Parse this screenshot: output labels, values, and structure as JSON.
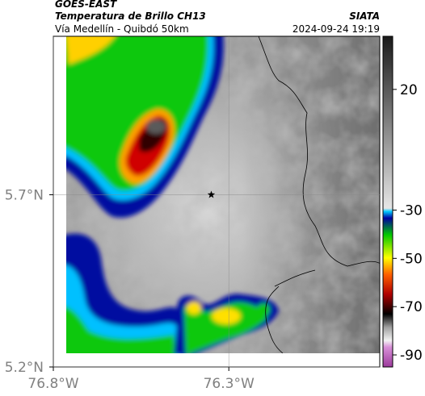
{
  "header": {
    "satellite": "GOES-EAST",
    "product": "Temperatura de Brillo CH13",
    "location": "Vía Medellín - Quibdó 50km",
    "source": "SIATA",
    "timestamp": "2024-09-24 19:19"
  },
  "map": {
    "lon_range": [
      -76.8,
      -75.87
    ],
    "lat_range": [
      5.2,
      6.16
    ],
    "lon_ticks": [
      {
        "value": -76.8,
        "label": "76.8°W"
      },
      {
        "value": -76.3,
        "label": "76.3°W"
      }
    ],
    "lat_ticks": [
      {
        "value": 5.7,
        "label": "5.7°N"
      },
      {
        "value": 5.2,
        "label": "5.2°N"
      }
    ],
    "marker": {
      "lon": -76.35,
      "lat": 5.7
    }
  },
  "colorbar": {
    "clim": [
      -95,
      42
    ],
    "ticks": [
      20,
      -30,
      -50,
      -70,
      -90
    ]
  }
}
